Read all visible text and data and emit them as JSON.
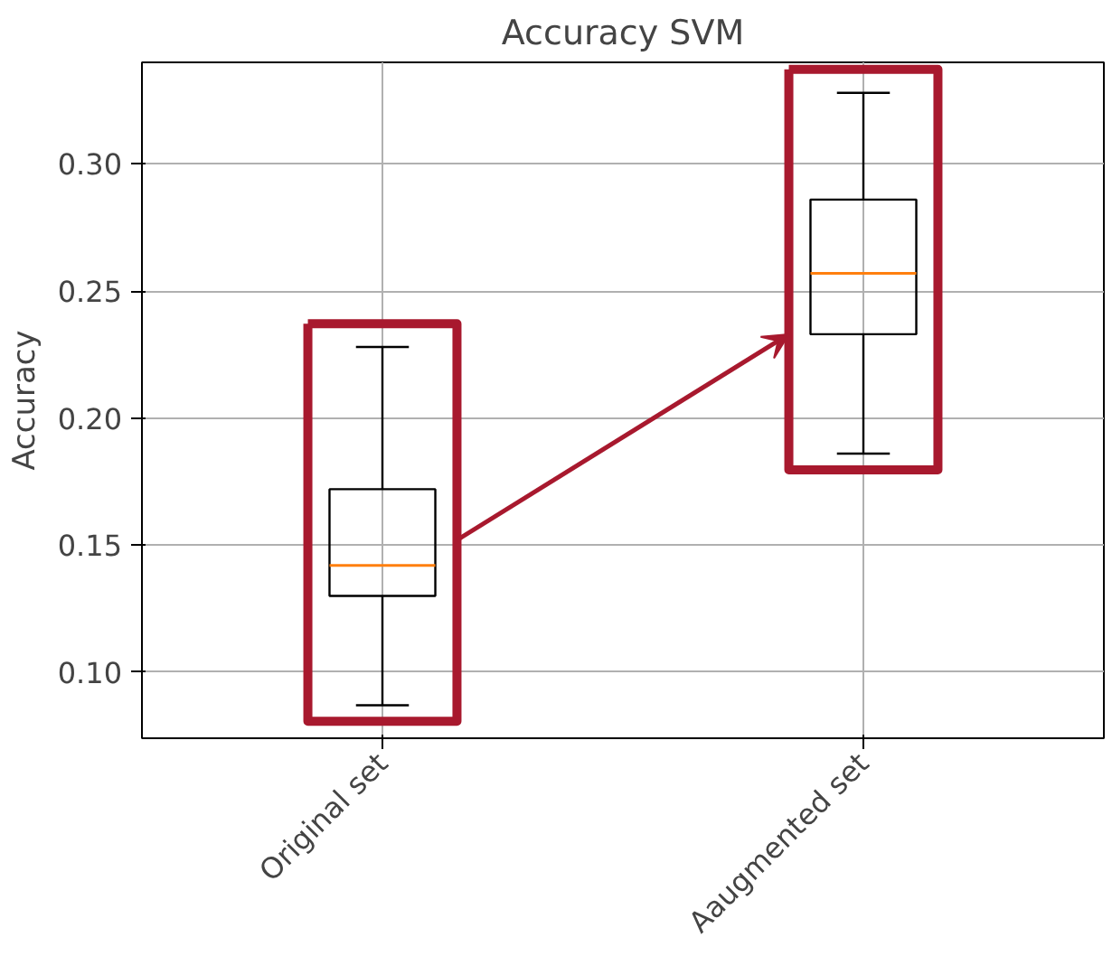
{
  "chart_data": {
    "type": "box",
    "title": "Accuracy SVM",
    "ylabel": "Accuracy",
    "categories": [
      "Original set",
      "Aaugmented set"
    ],
    "boxes": [
      {
        "low": 0.087,
        "q1": 0.13,
        "median": 0.142,
        "q3": 0.172,
        "high": 0.228
      },
      {
        "low": 0.186,
        "q1": 0.233,
        "median": 0.257,
        "q3": 0.286,
        "high": 0.328
      }
    ],
    "ylim": [
      0.074,
      0.34
    ],
    "yticks": [
      {
        "value": 0.1,
        "label": "0.10"
      },
      {
        "value": 0.15,
        "label": "0.15"
      },
      {
        "value": 0.2,
        "label": "0.20"
      },
      {
        "value": 0.25,
        "label": "0.25"
      },
      {
        "value": 0.3,
        "label": "0.30"
      }
    ],
    "grid": true
  }
}
